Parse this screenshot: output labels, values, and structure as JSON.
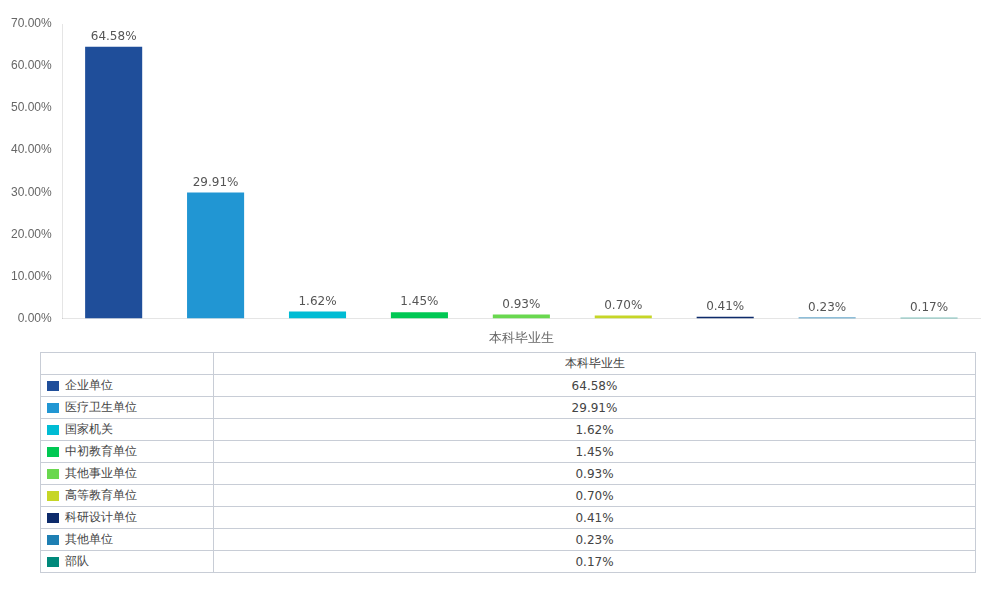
{
  "chart_data": {
    "type": "bar",
    "xlabel": "本科毕业生",
    "categories": [
      "企业单位",
      "医疗卫生单位",
      "国家机关",
      "中初教育单位",
      "其他事业单位",
      "高等教育单位",
      "科研设计单位",
      "其他单位",
      "部队"
    ],
    "values": [
      64.58,
      29.91,
      1.62,
      1.45,
      0.93,
      0.7,
      0.41,
      0.23,
      0.17
    ],
    "value_labels": [
      "64.58%",
      "29.91%",
      "1.62%",
      "1.45%",
      "0.93%",
      "0.70%",
      "0.41%",
      "0.23%",
      "0.17%"
    ],
    "colors": [
      "#1F4E9A",
      "#2196D3",
      "#00BCD4",
      "#00C853",
      "#69D84F",
      "#C6D626",
      "#0D2B6B",
      "#1E7FB3",
      "#00897B"
    ],
    "ylim": [
      0,
      70
    ],
    "yticks": [
      {
        "value": 0,
        "label": "0.00%"
      },
      {
        "value": 10,
        "label": "10.00%"
      },
      {
        "value": 20,
        "label": "20.00%"
      },
      {
        "value": 30,
        "label": "30.00%"
      },
      {
        "value": 40,
        "label": "40.00%"
      },
      {
        "value": 50,
        "label": "50.00%"
      },
      {
        "value": 60,
        "label": "60.00%"
      },
      {
        "value": 70,
        "label": "70.00%"
      }
    ],
    "grid": false,
    "data_labels": true,
    "tick_labels": "y"
  }
}
